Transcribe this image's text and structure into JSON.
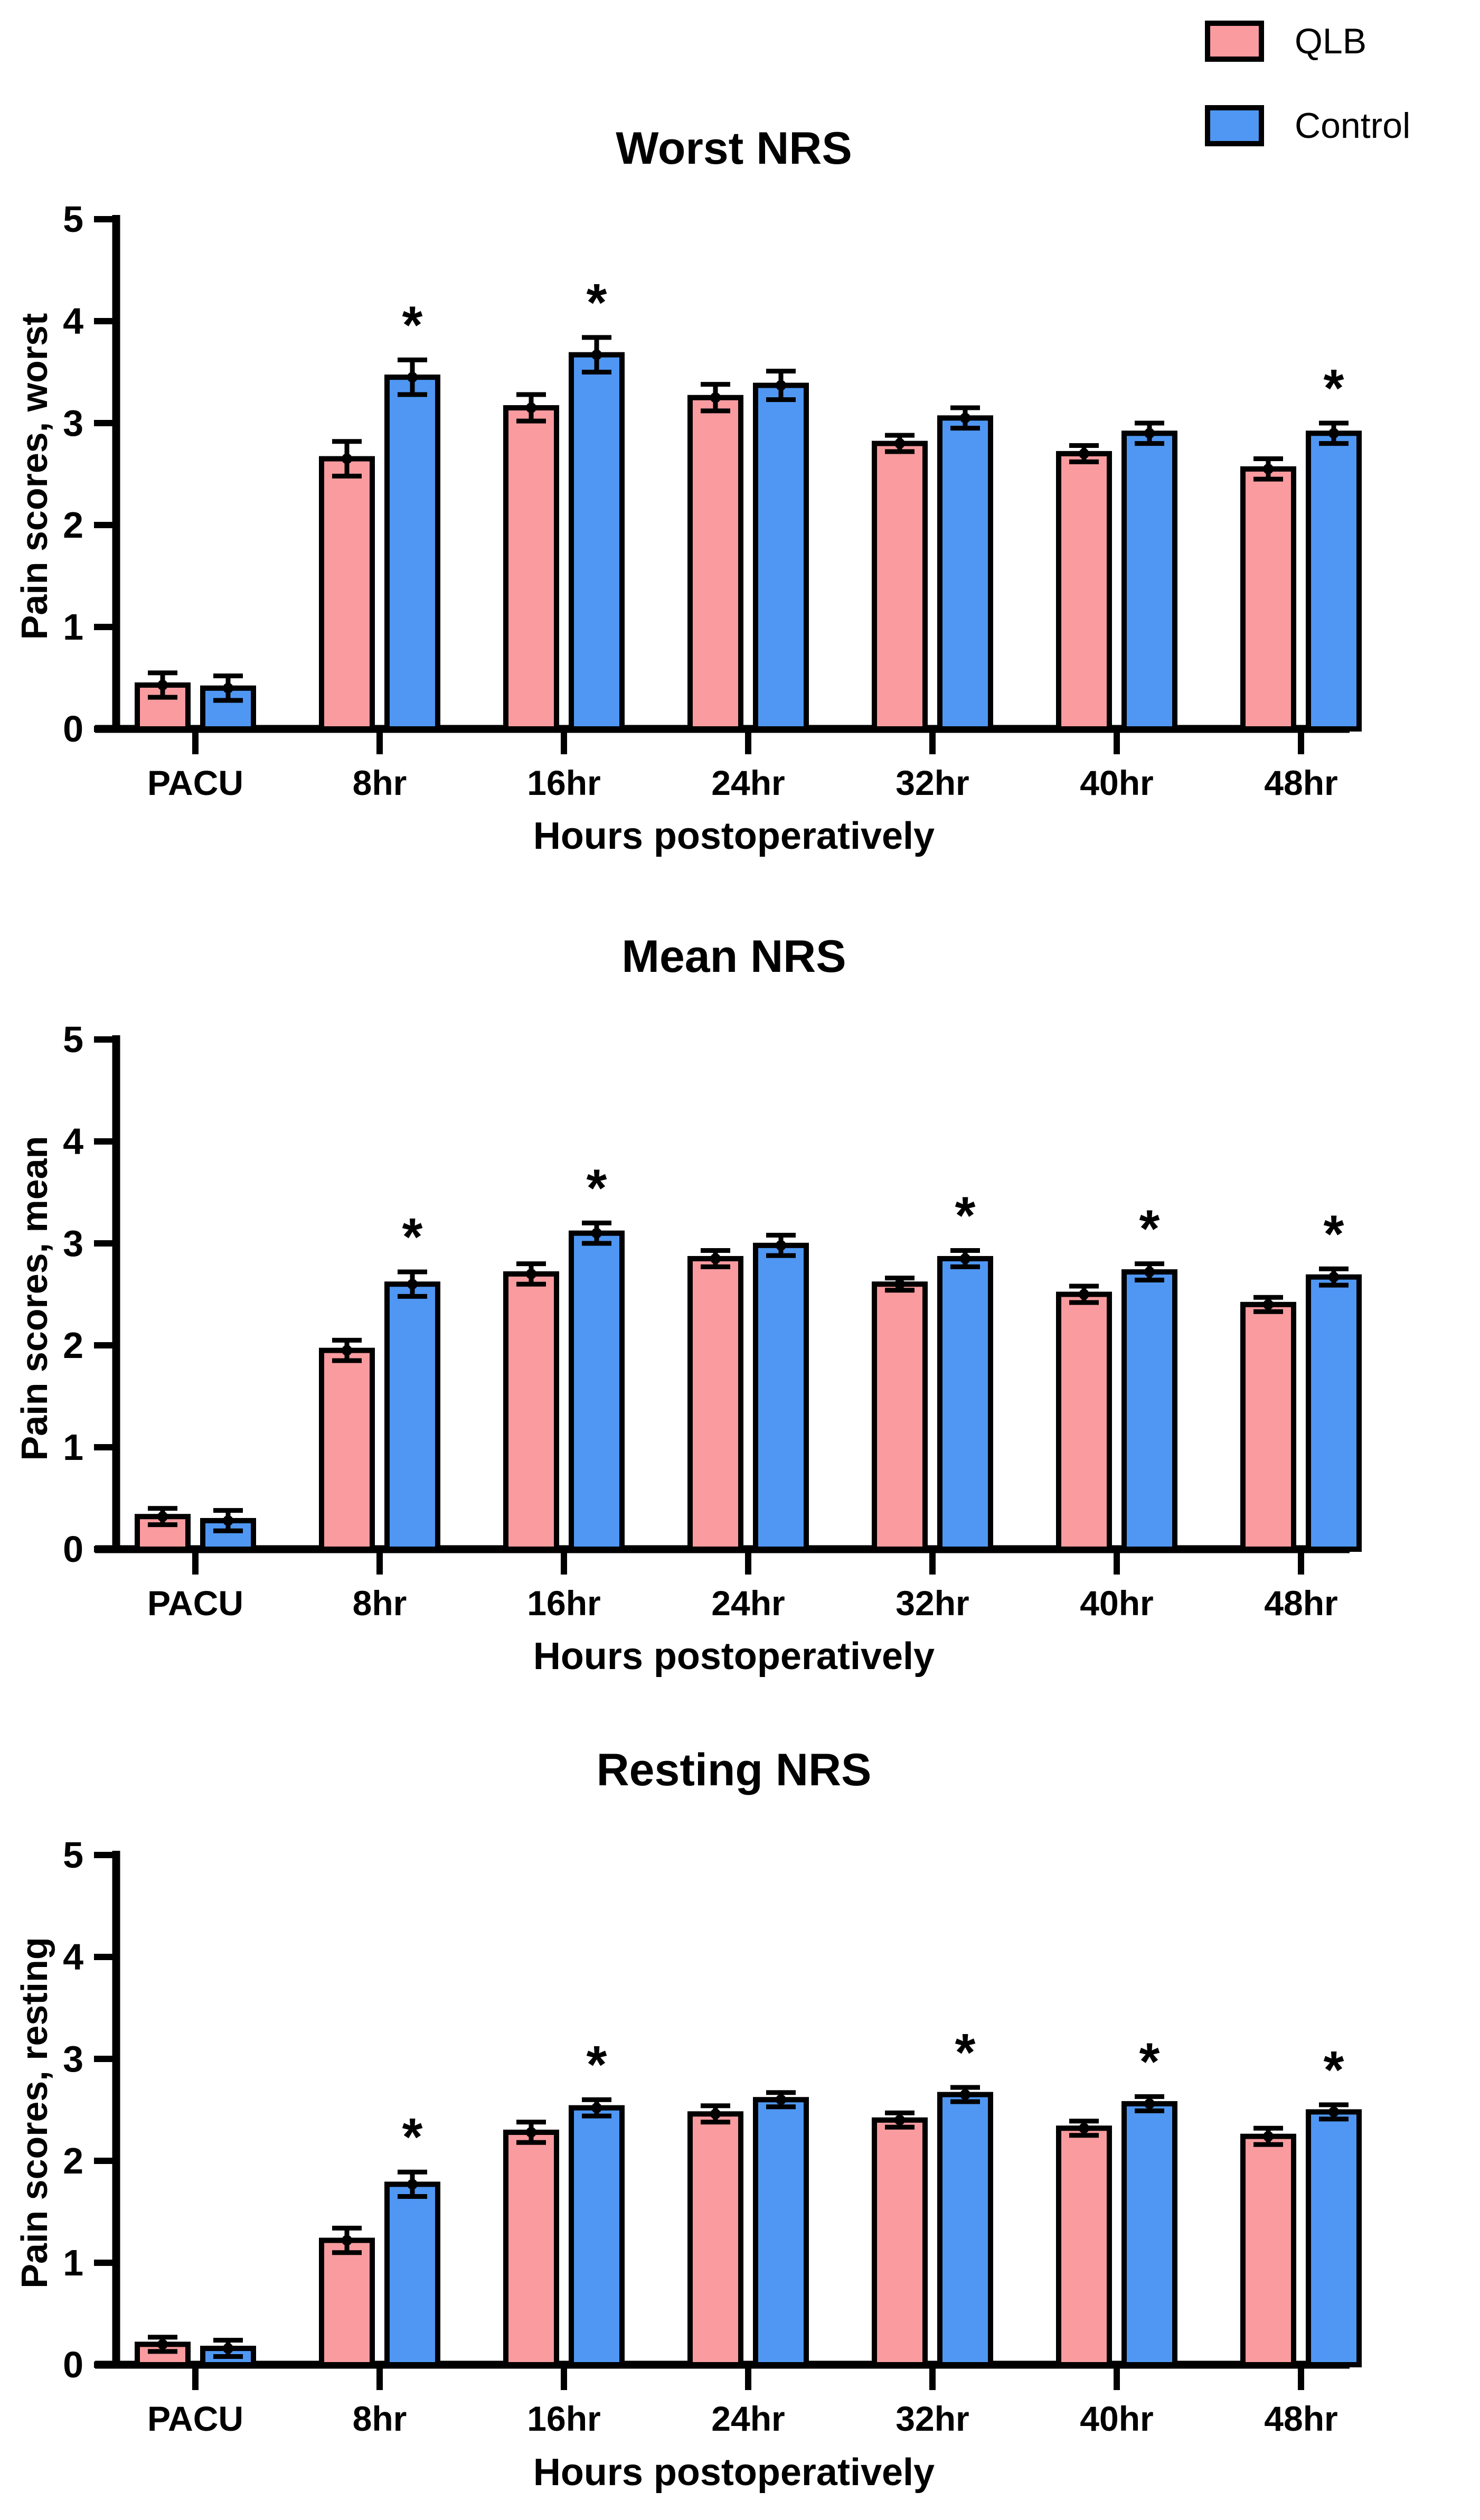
{
  "figure": {
    "background": "#FFFFFF",
    "sig_symbol": "*",
    "legend": {
      "items": [
        {
          "label": "QLB",
          "color": "#F99B9F",
          "swatch": "qlb-swatch"
        },
        {
          "label": "Control",
          "color": "#4F97F3",
          "swatch": "control-swatch"
        }
      ]
    }
  },
  "chart_data": [
    {
      "type": "bar",
      "title": "Worst NRS",
      "ylabel": "Pain scores, worst",
      "xlabel": "Hours postoperatively",
      "ylim": [
        0,
        5
      ],
      "yticks": [
        0,
        1,
        2,
        3,
        4,
        5
      ],
      "grid": false,
      "legend_position": "top-right-of-figure",
      "categories": [
        "PACU",
        "8hr",
        "16hr",
        "24hr",
        "32hr",
        "40hr",
        "48hr"
      ],
      "series": [
        {
          "name": "QLB",
          "color": "#F99B9F",
          "values": [
            0.43,
            2.65,
            3.15,
            3.25,
            2.8,
            2.7,
            2.55
          ],
          "errors": [
            0.12,
            0.17,
            0.13,
            0.13,
            0.08,
            0.08,
            0.1
          ]
        },
        {
          "name": "Control",
          "color": "#4F97F3",
          "values": [
            0.4,
            3.45,
            3.67,
            3.37,
            3.05,
            2.9,
            2.9
          ],
          "errors": [
            0.12,
            0.17,
            0.17,
            0.14,
            0.1,
            0.1,
            0.1
          ]
        }
      ],
      "significant_categories": [
        "8hr",
        "16hr",
        "48hr"
      ]
    },
    {
      "type": "bar",
      "title": "Mean NRS",
      "ylabel": "Pain scores, mean",
      "xlabel": "Hours postoperatively",
      "ylim": [
        0,
        5
      ],
      "yticks": [
        0,
        1,
        2,
        3,
        4,
        5
      ],
      "grid": false,
      "categories": [
        "PACU",
        "8hr",
        "16hr",
        "24hr",
        "32hr",
        "40hr",
        "48hr"
      ],
      "series": [
        {
          "name": "QLB",
          "color": "#F99B9F",
          "values": [
            0.32,
            1.95,
            2.7,
            2.85,
            2.6,
            2.5,
            2.4
          ],
          "errors": [
            0.08,
            0.1,
            0.1,
            0.08,
            0.06,
            0.08,
            0.07
          ]
        },
        {
          "name": "Control",
          "color": "#4F97F3",
          "values": [
            0.28,
            2.6,
            3.1,
            2.98,
            2.85,
            2.72,
            2.67
          ],
          "errors": [
            0.1,
            0.12,
            0.1,
            0.1,
            0.08,
            0.08,
            0.08
          ]
        }
      ],
      "significant_categories": [
        "8hr",
        "16hr",
        "32hr",
        "40hr",
        "48hr"
      ]
    },
    {
      "type": "bar",
      "title": "Resting NRS",
      "ylabel": "Pain scores, resting",
      "xlabel": "Hours postoperatively",
      "ylim": [
        0,
        5
      ],
      "yticks": [
        0,
        1,
        2,
        3,
        4,
        5
      ],
      "grid": false,
      "categories": [
        "PACU",
        "8hr",
        "16hr",
        "24hr",
        "32hr",
        "40hr",
        "48hr"
      ],
      "series": [
        {
          "name": "QLB",
          "color": "#F99B9F",
          "values": [
            0.2,
            1.22,
            2.28,
            2.46,
            2.4,
            2.32,
            2.24
          ],
          "errors": [
            0.07,
            0.12,
            0.1,
            0.08,
            0.07,
            0.07,
            0.08
          ]
        },
        {
          "name": "Control",
          "color": "#4F97F3",
          "values": [
            0.16,
            1.77,
            2.52,
            2.6,
            2.65,
            2.56,
            2.48
          ],
          "errors": [
            0.08,
            0.12,
            0.08,
            0.07,
            0.07,
            0.07,
            0.07
          ]
        }
      ],
      "significant_categories": [
        "8hr",
        "16hr",
        "32hr",
        "40hr",
        "48hr"
      ]
    }
  ]
}
